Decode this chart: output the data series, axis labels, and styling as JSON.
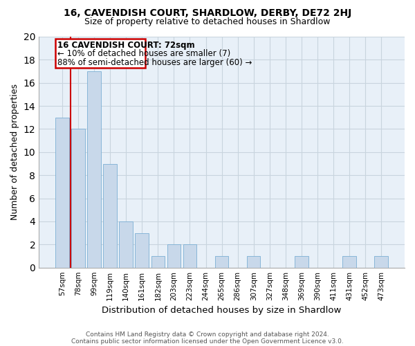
{
  "title": "16, CAVENDISH COURT, SHARDLOW, DERBY, DE72 2HJ",
  "subtitle": "Size of property relative to detached houses in Shardlow",
  "xlabel": "Distribution of detached houses by size in Shardlow",
  "ylabel": "Number of detached properties",
  "bar_labels": [
    "57sqm",
    "78sqm",
    "99sqm",
    "119sqm",
    "140sqm",
    "161sqm",
    "182sqm",
    "203sqm",
    "223sqm",
    "244sqm",
    "265sqm",
    "286sqm",
    "307sqm",
    "327sqm",
    "348sqm",
    "369sqm",
    "390sqm",
    "411sqm",
    "431sqm",
    "452sqm",
    "473sqm"
  ],
  "bar_values": [
    13,
    12,
    17,
    9,
    4,
    3,
    1,
    2,
    2,
    0,
    1,
    0,
    1,
    0,
    0,
    1,
    0,
    0,
    1,
    0,
    1
  ],
  "bar_color": "#c8d8ea",
  "bar_edge_color": "#7bafd4",
  "annotation_title": "16 CAVENDISH COURT: 72sqm",
  "annotation_line1": "← 10% of detached houses are smaller (7)",
  "annotation_line2": "88% of semi-detached houses are larger (60) →",
  "annotation_box_facecolor": "#ffffff",
  "annotation_box_edgecolor": "#cc0000",
  "ylim": [
    0,
    20
  ],
  "yticks": [
    0,
    2,
    4,
    6,
    8,
    10,
    12,
    14,
    16,
    18,
    20
  ],
  "footer1": "Contains HM Land Registry data © Crown copyright and database right 2024.",
  "footer2": "Contains public sector information licensed under the Open Government Licence v3.0.",
  "grid_color": "#c8d4de",
  "axes_bg_color": "#e8f0f8",
  "red_line_x": 0.5,
  "red_line_color": "#cc0000"
}
